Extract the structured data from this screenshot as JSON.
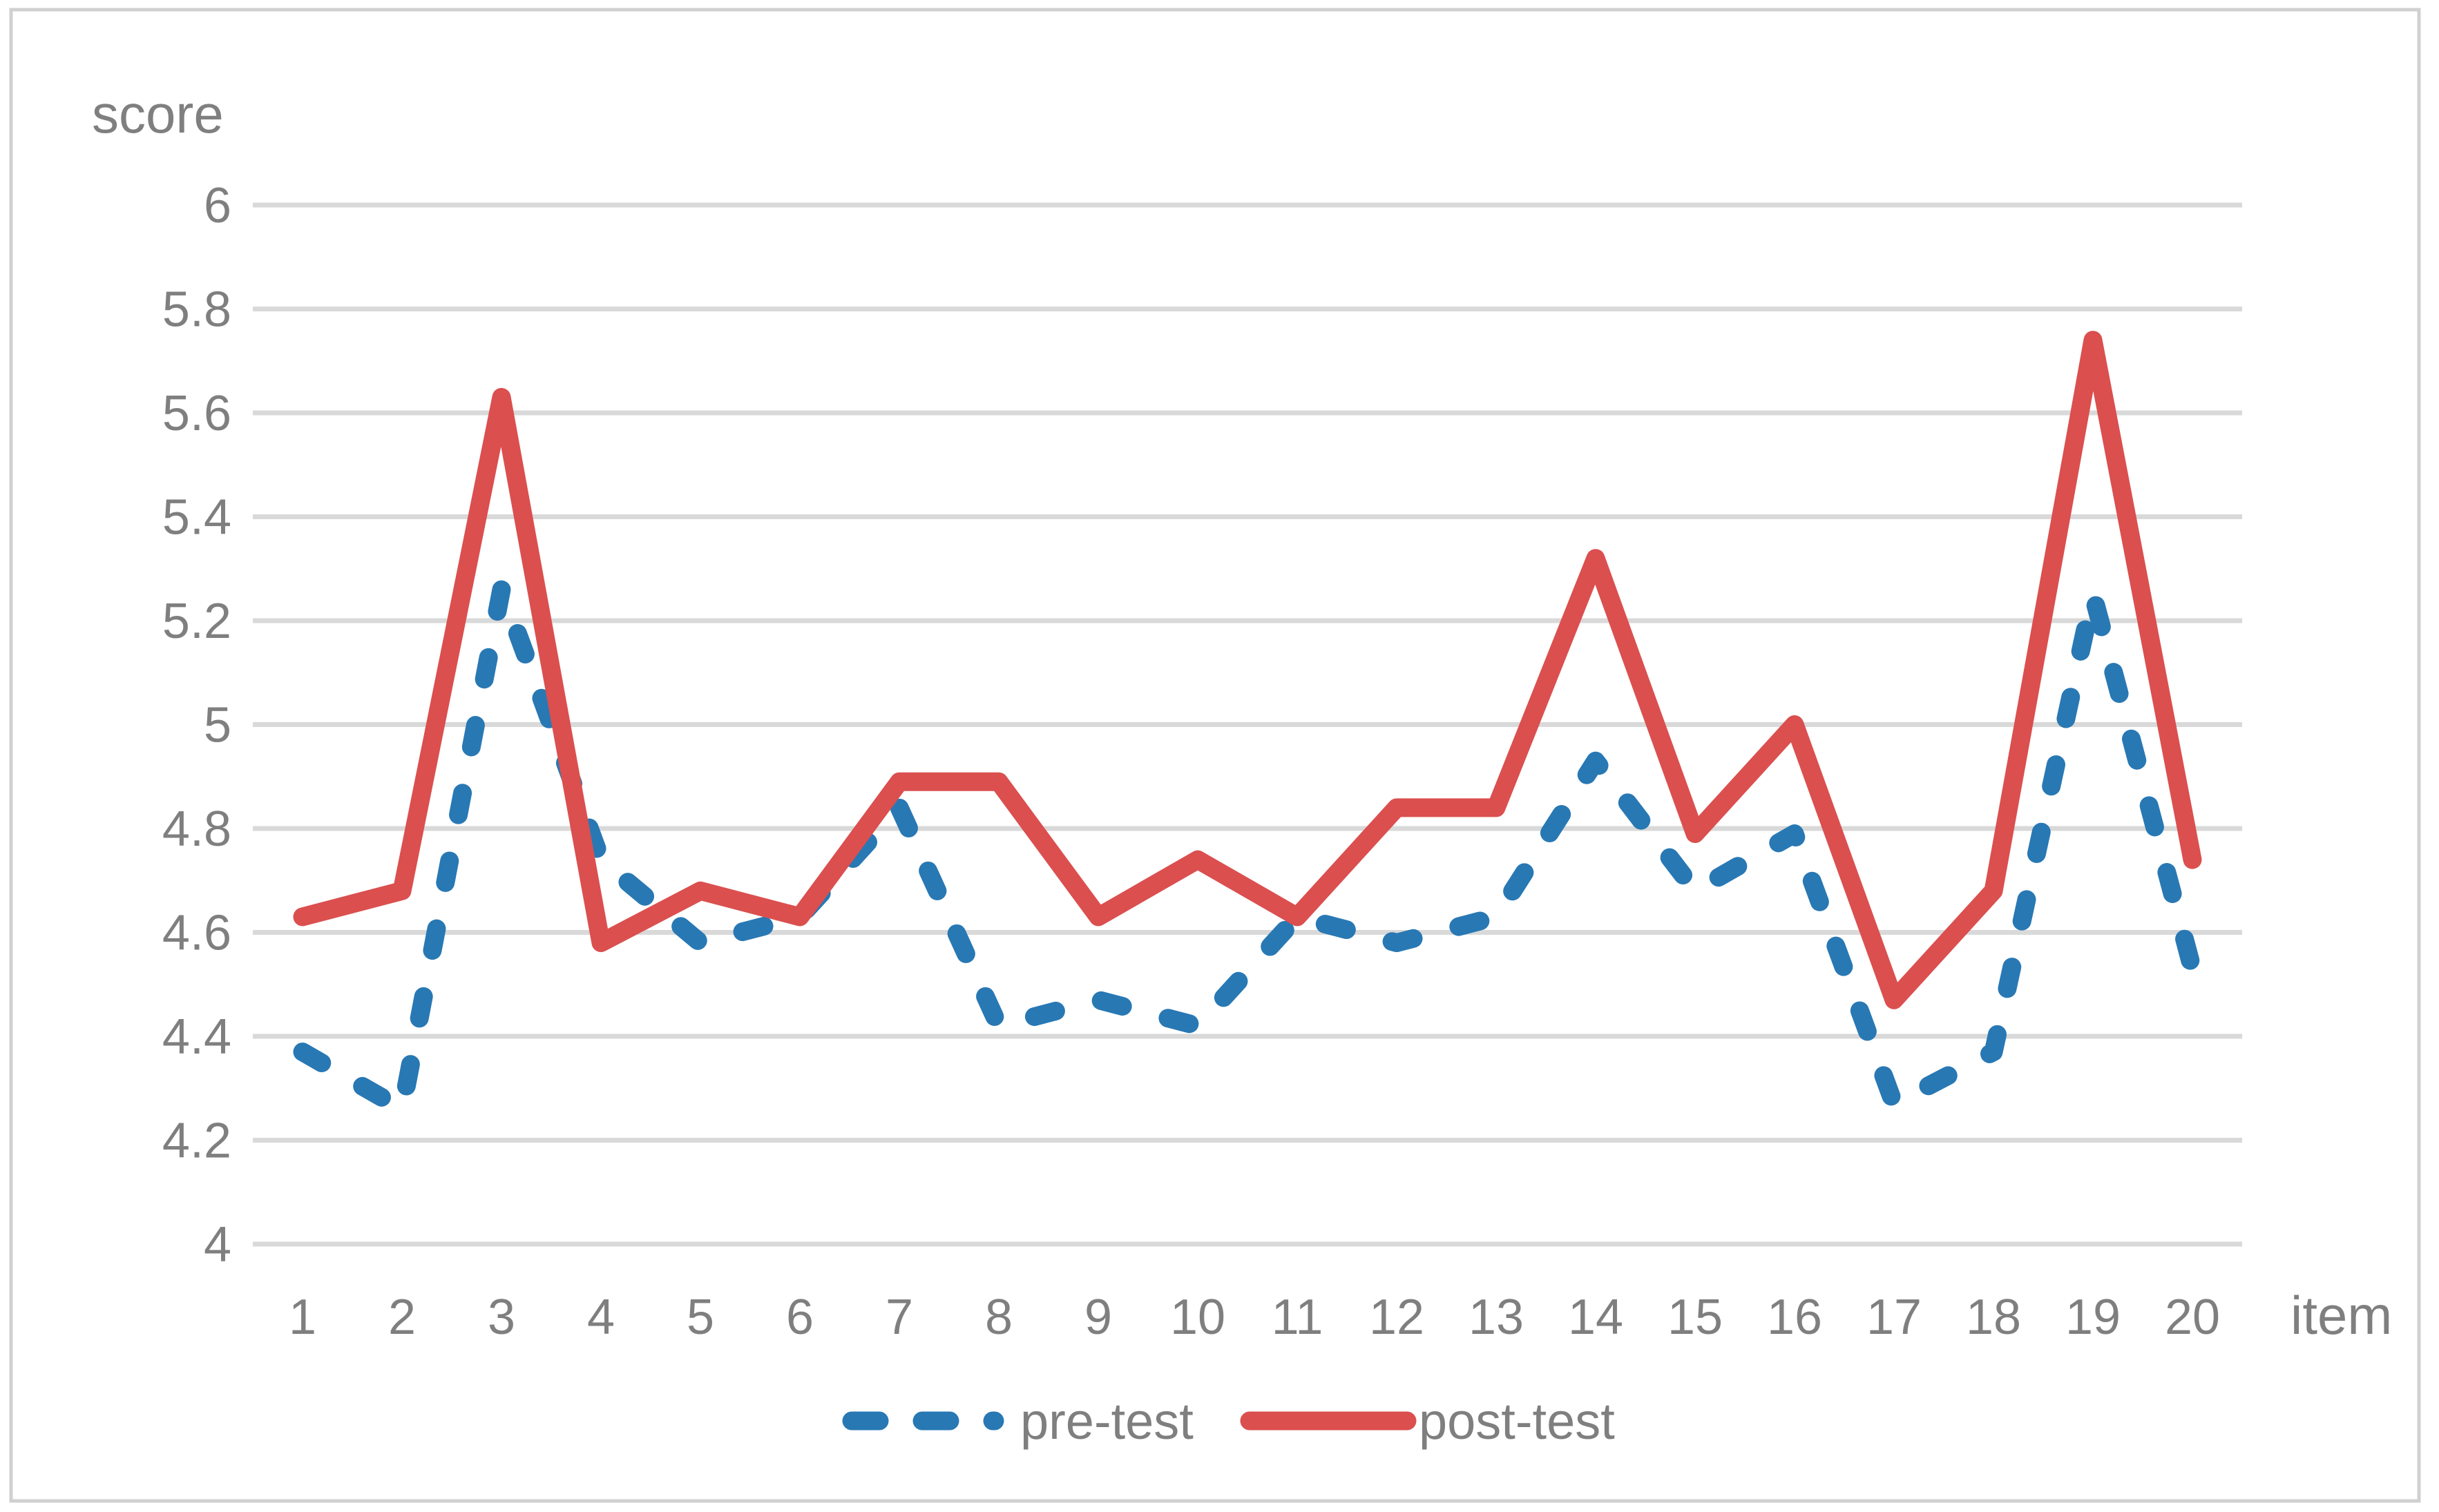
{
  "chart_data": {
    "type": "line",
    "title": "",
    "ylabel": "score",
    "xlabel": "item",
    "categories": [
      "1",
      "2",
      "3",
      "4",
      "5",
      "6",
      "7",
      "8",
      "9",
      "10",
      "11",
      "12",
      "13",
      "14",
      "15",
      "16",
      "17",
      "18",
      "19",
      "20"
    ],
    "y_ticks": [
      "6",
      "5.8",
      "5.6",
      "5.4",
      "5.2",
      "5",
      "4.8",
      "4.6",
      "4.4",
      "4.2",
      "4"
    ],
    "y_tick_values": [
      6,
      5.8,
      5.6,
      5.4,
      5.2,
      5,
      4.8,
      4.6,
      4.4,
      4.2,
      4
    ],
    "ylim": [
      4,
      6
    ],
    "grid": "horizontal",
    "legend_position": "bottom-center",
    "series": [
      {
        "name": "pre-test",
        "style": "dashed",
        "color": "#2878B4",
        "values": [
          4.37,
          4.26,
          5.26,
          4.74,
          4.58,
          4.63,
          4.84,
          4.42,
          4.47,
          4.42,
          4.63,
          4.58,
          4.63,
          4.93,
          4.68,
          4.79,
          4.27,
          4.37,
          5.25,
          4.53
        ]
      },
      {
        "name": "post-test",
        "style": "solid",
        "color": "#DB4F4F",
        "values": [
          4.63,
          4.68,
          5.63,
          4.58,
          4.68,
          4.63,
          4.89,
          4.89,
          4.63,
          4.74,
          4.63,
          4.84,
          4.84,
          5.32,
          4.79,
          5.0,
          4.47,
          4.68,
          5.74,
          4.74
        ]
      }
    ]
  },
  "colors": {
    "gridline": "#D9D9D9",
    "axis_text": "#7F7F7F",
    "border": "#D0D0D0",
    "background": "#FFFFFF"
  }
}
